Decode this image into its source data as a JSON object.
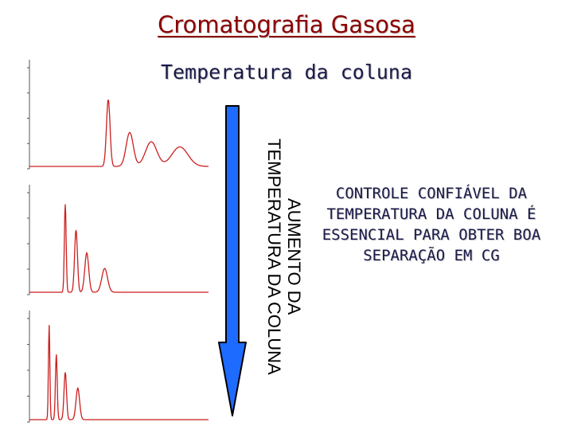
{
  "slide": {
    "title": "Cromatografia Gasosa",
    "subtitle": "Temperatura da coluna",
    "arrow_label_line1": "AUMENTO DA",
    "arrow_label_line2": "TEMPERATURA DA COLUNA",
    "note": "CONTROLE CONFIÁVEL DA TEMPERATURA DA COLUNA É ESSENCIAL PARA OBTER BOA SEPARAÇÃO EM CG"
  },
  "colors": {
    "title": "#8b0000",
    "text": "#1a1a4a",
    "trace": "#cc1f1f",
    "arrow_fill": "#1e6cff",
    "arrow_stroke": "#000000"
  },
  "chromatograms": [
    {
      "name": "low-temperature",
      "peaks": [
        [
          0.44,
          0.65,
          0.01
        ],
        [
          0.56,
          0.33,
          0.02
        ],
        [
          0.68,
          0.24,
          0.032
        ],
        [
          0.84,
          0.19,
          0.045
        ]
      ]
    },
    {
      "name": "medium-temperature",
      "peaks": [
        [
          0.2,
          0.85,
          0.005
        ],
        [
          0.26,
          0.6,
          0.008
        ],
        [
          0.32,
          0.38,
          0.011
        ],
        [
          0.42,
          0.23,
          0.016
        ]
      ]
    },
    {
      "name": "high-temperature",
      "peaks": [
        [
          0.11,
          0.9,
          0.004
        ],
        [
          0.15,
          0.62,
          0.005
        ],
        [
          0.2,
          0.45,
          0.007
        ],
        [
          0.27,
          0.3,
          0.01
        ]
      ]
    }
  ]
}
